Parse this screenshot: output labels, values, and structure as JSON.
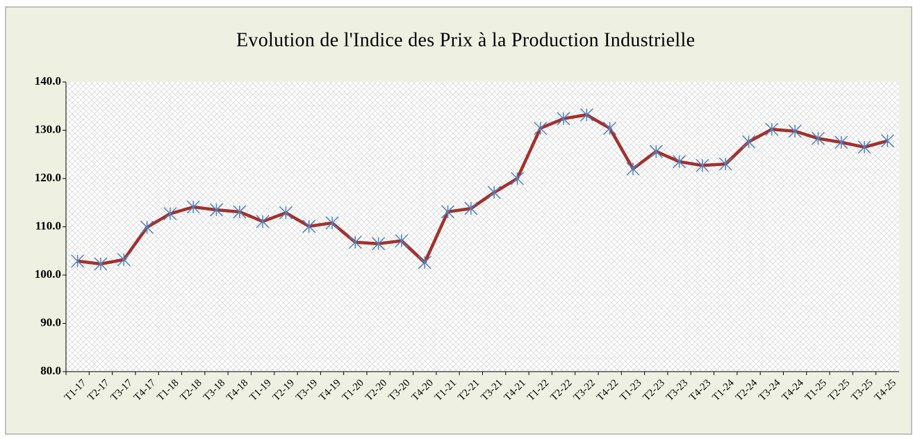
{
  "chart_data": {
    "type": "line",
    "title": "Evolution de l'Indice des Prix à la Production Industrielle",
    "categories": [
      "T1-17",
      "T2-17",
      "T3-17",
      "T4-17",
      "T1-18",
      "T2-18",
      "T3-18",
      "T4-18",
      "T1-19",
      "T2-19",
      "T3-19",
      "T4-19",
      "T1-20",
      "T2-20",
      "T3-20",
      "T4-20",
      "T1-21",
      "T2-21",
      "T3-21",
      "T4-21",
      "T1-22",
      "T2-22",
      "T3-22",
      "T4-22",
      "T1-23",
      "T2-23",
      "T3-23",
      "T4-23",
      "T1-24",
      "T2-24",
      "T3-24",
      "T4-24",
      "T1-25",
      "T2-25",
      "T3-25",
      "T4-25"
    ],
    "series": [
      {
        "color": "#a3302c",
        "marker_color": "#4f81bd",
        "values": [
          102.9,
          102.3,
          103.2,
          109.9,
          112.7,
          114.1,
          113.5,
          113.1,
          111.1,
          112.9,
          110.1,
          110.8,
          106.8,
          106.5,
          107.1,
          102.6,
          113.1,
          113.8,
          117.1,
          120.0,
          130.4,
          132.4,
          133.2,
          130.4,
          122.0,
          125.6,
          123.5,
          122.7,
          123.0,
          127.6,
          130.2,
          129.8,
          128.3,
          127.5,
          126.5,
          127.8
        ]
      }
    ],
    "ylim": [
      80,
      140
    ],
    "yticks": [
      {
        "value": 80,
        "label": "80.0"
      },
      {
        "value": 90,
        "label": "90.0"
      },
      {
        "value": 100,
        "label": "100.0"
      },
      {
        "value": 110,
        "label": "110.0"
      },
      {
        "value": 120,
        "label": "120.0"
      },
      {
        "value": 130,
        "label": "130.0"
      },
      {
        "value": 140,
        "label": "140.0"
      }
    ],
    "grid": false
  }
}
